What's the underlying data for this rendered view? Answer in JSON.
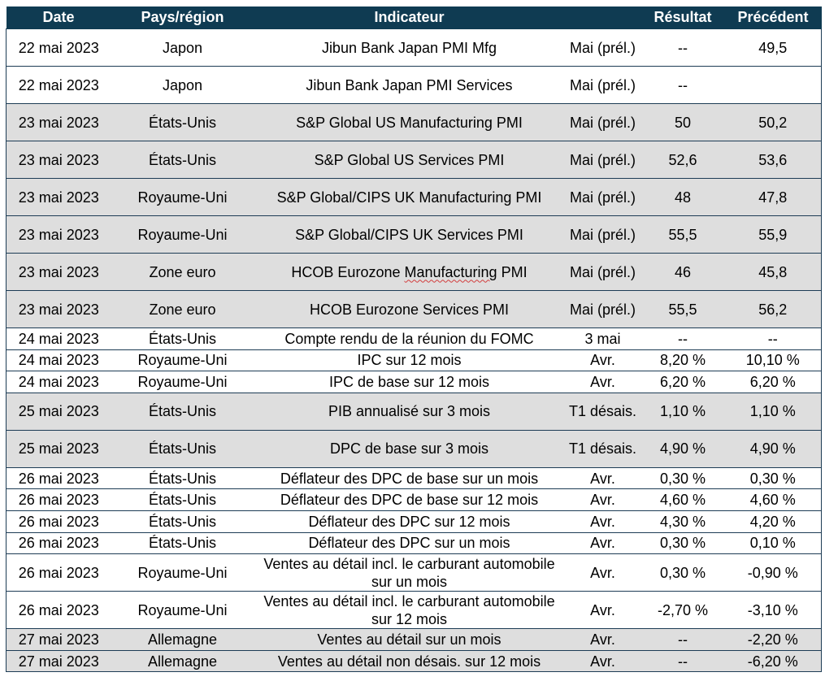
{
  "headers": {
    "date": "Date",
    "country": "Pays/région",
    "indicator": "Indicateur",
    "period": "",
    "result": "Résultat",
    "previous": "Précédent"
  },
  "rows": [
    {
      "date": "22 mai 2023",
      "country": "Japon",
      "indicator": "Jibun Bank Japan PMI Mfg",
      "period": "Mai (prél.)",
      "result": "--",
      "previous": "49,5"
    },
    {
      "date": "22 mai 2023",
      "country": "Japon",
      "indicator": "Jibun Bank Japan PMI Services",
      "period": "Mai (prél.)",
      "result": "--",
      "previous": ""
    },
    {
      "date": "23 mai 2023",
      "country": "États-Unis",
      "indicator": "S&P Global US Manufacturing PMI",
      "period": "Mai (prél.)",
      "result": "50",
      "previous": "50,2"
    },
    {
      "date": "23 mai 2023",
      "country": "États-Unis",
      "indicator": "S&P Global US Services PMI",
      "period": "Mai (prél.)",
      "result": "52,6",
      "previous": "53,6"
    },
    {
      "date": "23 mai 2023",
      "country": "Royaume-Uni",
      "indicator": "S&P Global/CIPS UK Manufacturing PMI",
      "period": "Mai (prél.)",
      "result": "48",
      "previous": "47,8"
    },
    {
      "date": "23 mai 2023",
      "country": "Royaume-Uni",
      "indicator": "S&P Global/CIPS UK Services PMI",
      "period": "Mai (prél.)",
      "result": "55,5",
      "previous": "55,9"
    },
    {
      "date": "23 mai 2023",
      "country": "Zone euro",
      "indicator_pre": "HCOB Eurozone ",
      "indicator_wavy": "Manufacturing",
      "indicator_post": " PMI",
      "period": "Mai (prél.)",
      "result": "46",
      "previous": "45,8"
    },
    {
      "date": "23 mai 2023",
      "country": "Zone euro",
      "indicator": "HCOB Eurozone Services PMI",
      "period": "Mai (prél.)",
      "result": "55,5",
      "previous": "56,2"
    },
    {
      "date": "24 mai 2023",
      "country": "États-Unis",
      "indicator": "Compte rendu de la réunion du FOMC",
      "period": "3 mai",
      "result": "--",
      "previous": "--"
    },
    {
      "date": "24 mai 2023",
      "country": "Royaume-Uni",
      "indicator": "IPC sur 12 mois",
      "period": "Avr.",
      "result": "8,20 %",
      "previous": "10,10 %"
    },
    {
      "date": "24 mai 2023",
      "country": "Royaume-Uni",
      "indicator": "IPC de base sur 12 mois",
      "period": "Avr.",
      "result": "6,20 %",
      "previous": "6,20 %"
    },
    {
      "date": "25 mai 2023",
      "country": "États-Unis",
      "indicator": "PIB annualisé sur 3 mois",
      "period": "T1 désais.",
      "result": "1,10 %",
      "previous": "1,10 %"
    },
    {
      "date": "25 mai 2023",
      "country": "États-Unis",
      "indicator": "DPC de base sur 3 mois",
      "period": "T1 désais.",
      "result": "4,90 %",
      "previous": "4,90 %"
    },
    {
      "date": "26 mai 2023",
      "country": "États-Unis",
      "indicator": "Déflateur des DPC de base sur un mois",
      "period": "Avr.",
      "result": "0,30 %",
      "previous": "0,30 %"
    },
    {
      "date": "26 mai 2023",
      "country": "États-Unis",
      "indicator": "Déflateur des DPC de base sur 12 mois",
      "period": "Avr.",
      "result": "4,60 %",
      "previous": "4,60 %"
    },
    {
      "date": "26 mai 2023",
      "country": "États-Unis",
      "indicator": "Déflateur des DPC sur 12 mois",
      "period": "Avr.",
      "result": "4,30 %",
      "previous": "4,20 %"
    },
    {
      "date": "26 mai 2023",
      "country": "États-Unis",
      "indicator": "Déflateur des DPC sur un mois",
      "period": "Avr.",
      "result": "0,30 %",
      "previous": "0,10 %"
    },
    {
      "date": "26 mai 2023",
      "country": "Royaume-Uni",
      "indicator": "Ventes au détail incl. le carburant automobile sur un mois",
      "period": "Avr.",
      "result": "0,30 %",
      "previous": "-0,90 %"
    },
    {
      "date": "26 mai 2023",
      "country": "Royaume-Uni",
      "indicator": "Ventes au détail incl. le carburant automobile sur 12 mois",
      "period": "Avr.",
      "result": "-2,70 %",
      "previous": "-3,10 %"
    },
    {
      "date": "27 mai 2023",
      "country": "Allemagne",
      "indicator": "Ventes au détail sur un mois",
      "period": "Avr.",
      "result": "--",
      "previous": "-2,20 %"
    },
    {
      "date": "27 mai 2023",
      "country": "Allemagne",
      "indicator": "Ventes au détail non désais. sur 12 mois",
      "period": "Avr.",
      "result": "--",
      "previous": "-6,20 %"
    }
  ],
  "colors": {
    "header_bg": "#0f3b52",
    "shaded_row": "#dedede",
    "border": "#1d3c55",
    "spellcheck": "#d23c3c"
  }
}
